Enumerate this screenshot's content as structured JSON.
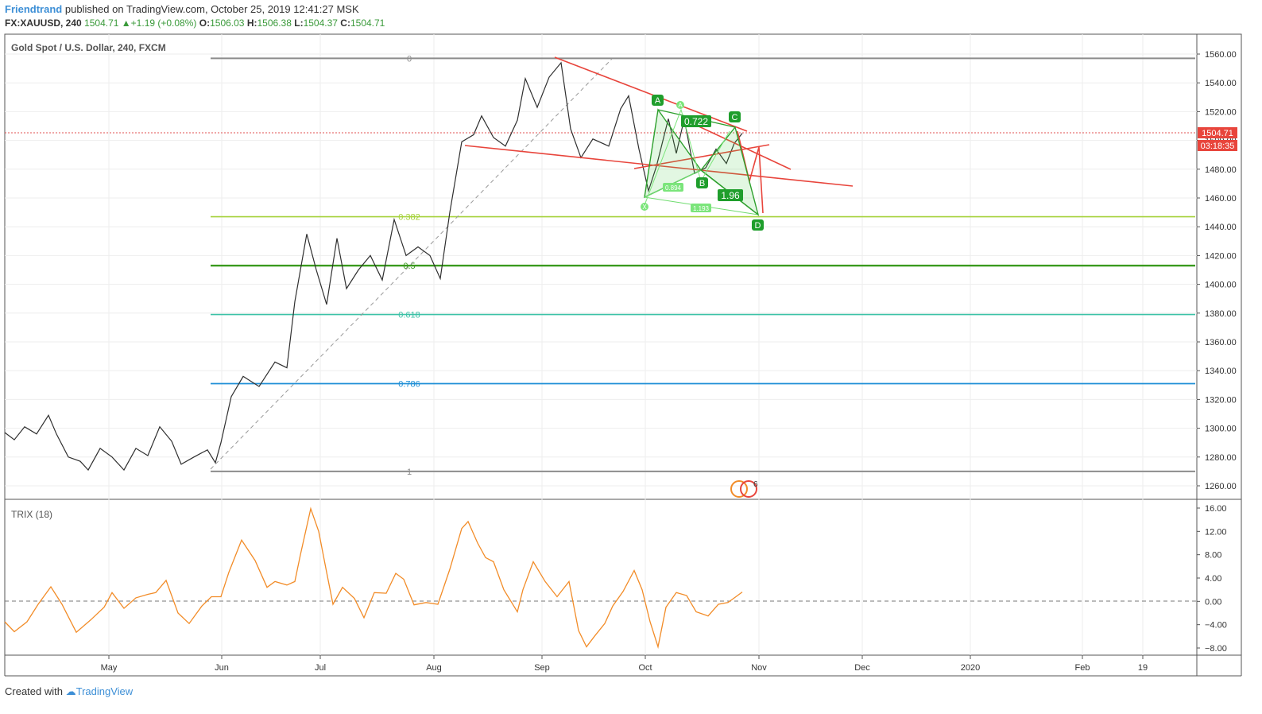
{
  "header": {
    "author": "Friendtrand",
    "published": "published on TradingView.com, October 25, 2019 12:41:27 MSK",
    "symbol": "FX:XAUUSD, 240",
    "last": "1504.71",
    "change": "+1.19 (+0.08%)",
    "o_label": "O:",
    "o": "1506.03",
    "h_label": "H:",
    "h": "1506.38",
    "l_label": "L:",
    "l": "1504.37",
    "c_label": "C:",
    "c": "1504.71"
  },
  "footer": {
    "created": "Created with",
    "brand": "TradingView"
  },
  "chart_data": [
    {
      "type": "line",
      "title": "Gold Spot / U.S. Dollar, 240, FXCM",
      "ylim": [
        1255,
        1566
      ],
      "y_ticks": [
        "1560.00",
        "1540.00",
        "1520.00",
        "1500.00",
        "1480.00",
        "1460.00",
        "1440.00",
        "1420.00",
        "1400.00",
        "1380.00",
        "1360.00",
        "1340.00",
        "1320.00",
        "1300.00",
        "1280.00",
        "1260.00"
      ],
      "x_ticks": [
        "May",
        "Jun",
        "Jul",
        "Aug",
        "Sep",
        "Oct",
        "Nov",
        "Dec",
        "2020",
        "Feb",
        "19"
      ],
      "last_price_label": "1504.71",
      "countdown_label": "03:18:35",
      "series": [
        {
          "values": [
            [
              0,
              1297
            ],
            [
              12,
              1292
            ],
            [
              25,
              1301
            ],
            [
              40,
              1296
            ],
            [
              55,
              1309
            ],
            [
              65,
              1296
            ],
            [
              80,
              1280
            ],
            [
              95,
              1277
            ],
            [
              105,
              1271
            ],
            [
              120,
              1286
            ],
            [
              135,
              1280
            ],
            [
              150,
              1271
            ],
            [
              165,
              1286
            ],
            [
              180,
              1281
            ],
            [
              195,
              1301
            ],
            [
              210,
              1291
            ],
            [
              222,
              1275
            ],
            [
              238,
              1280
            ],
            [
              255,
              1285
            ],
            [
              265,
              1276
            ],
            [
              272,
              1290
            ],
            [
              285,
              1322
            ],
            [
              300,
              1336
            ],
            [
              320,
              1329
            ],
            [
              340,
              1346
            ],
            [
              355,
              1342
            ],
            [
              365,
              1388
            ],
            [
              380,
              1435
            ],
            [
              392,
              1410
            ],
            [
              405,
              1386
            ],
            [
              418,
              1432
            ],
            [
              430,
              1397
            ],
            [
              445,
              1410
            ],
            [
              460,
              1420
            ],
            [
              475,
              1403
            ],
            [
              490,
              1445
            ],
            [
              505,
              1420
            ],
            [
              520,
              1426
            ],
            [
              535,
              1420
            ],
            [
              548,
              1404
            ],
            [
              560,
              1450
            ],
            [
              575,
              1499
            ],
            [
              590,
              1504
            ],
            [
              600,
              1517
            ],
            [
              615,
              1502
            ],
            [
              630,
              1496
            ],
            [
              645,
              1514
            ],
            [
              655,
              1543
            ],
            [
              670,
              1523
            ],
            [
              685,
              1544
            ],
            [
              700,
              1554
            ],
            [
              712,
              1508
            ],
            [
              725,
              1488
            ],
            [
              740,
              1501
            ],
            [
              760,
              1496
            ],
            [
              775,
              1522
            ],
            [
              785,
              1531
            ],
            [
              798,
              1494
            ],
            [
              810,
              1465
            ],
            [
              820,
              1482
            ],
            [
              835,
              1515
            ],
            [
              845,
              1491
            ],
            [
              855,
              1515
            ],
            [
              868,
              1477
            ],
            [
              882,
              1481
            ],
            [
              895,
              1494
            ],
            [
              908,
              1484
            ],
            [
              918,
              1498
            ],
            [
              928,
              1505
            ]
          ]
        }
      ],
      "fib_levels": [
        {
          "label": "0",
          "value": 1557
        },
        {
          "label": "0.382",
          "value": 1447
        },
        {
          "label": "0.5",
          "value": 1413
        },
        {
          "label": "0.618",
          "value": 1379
        },
        {
          "label": "0.786",
          "value": 1331
        },
        {
          "label": "1",
          "value": 1270
        }
      ],
      "pattern_labels": {
        "X": "X",
        "A": "A",
        "B": "B",
        "C": "C",
        "D": "D",
        "r1": "0.722",
        "r2": "1.96",
        "r3": "0.894",
        "r4": "1.193"
      },
      "event_label": "6"
    },
    {
      "type": "line",
      "title": "TRIX (18)",
      "ylim": [
        -9.5,
        17.5
      ],
      "y_ticks": [
        "16.00",
        "12.00",
        "8.00",
        "4.00",
        "0.00",
        "−4.00",
        "−8.00"
      ],
      "series": [
        {
          "values": [
            [
              0,
              -3.5
            ],
            [
              12,
              -5.2
            ],
            [
              28,
              -3.5
            ],
            [
              42,
              -0.5
            ],
            [
              58,
              2.5
            ],
            [
              72,
              -0.5
            ],
            [
              90,
              -5.3
            ],
            [
              108,
              -3.2
            ],
            [
              125,
              -1
            ],
            [
              135,
              1.5
            ],
            [
              150,
              -1.2
            ],
            [
              165,
              0.6
            ],
            [
              180,
              1.2
            ],
            [
              190,
              1.5
            ],
            [
              203,
              3.6
            ],
            [
              218,
              -2
            ],
            [
              232,
              -3.8
            ],
            [
              248,
              -0.8
            ],
            [
              260,
              0.8
            ],
            [
              272,
              0.8
            ],
            [
              282,
              5
            ],
            [
              298,
              10.5
            ],
            [
              315,
              7
            ],
            [
              330,
              2.4
            ],
            [
              340,
              3.4
            ],
            [
              355,
              2.8
            ],
            [
              365,
              3.4
            ],
            [
              372,
              8
            ],
            [
              385,
              15.9
            ],
            [
              395,
              12
            ],
            [
              405,
              5
            ],
            [
              413,
              -0.5
            ],
            [
              425,
              2.4
            ],
            [
              440,
              0.5
            ],
            [
              452,
              -2.8
            ],
            [
              465,
              1.5
            ],
            [
              480,
              1.4
            ],
            [
              492,
              4.8
            ],
            [
              502,
              3.8
            ],
            [
              515,
              -0.6
            ],
            [
              530,
              -0.2
            ],
            [
              545,
              -0.5
            ],
            [
              560,
              5.5
            ],
            [
              575,
              12.5
            ],
            [
              583,
              13.7
            ],
            [
              595,
              10
            ],
            [
              605,
              7.5
            ],
            [
              615,
              6.8
            ],
            [
              628,
              2
            ],
            [
              645,
              -1.8
            ],
            [
              652,
              2
            ],
            [
              665,
              6.8
            ],
            [
              680,
              3.4
            ],
            [
              695,
              0.8
            ],
            [
              710,
              3.4
            ],
            [
              722,
              -5
            ],
            [
              732,
              -7.8
            ],
            [
              742,
              -6
            ],
            [
              755,
              -3.8
            ],
            [
              765,
              -0.8
            ],
            [
              778,
              1.7
            ],
            [
              792,
              5.3
            ],
            [
              802,
              2
            ],
            [
              812,
              -3.5
            ],
            [
              822,
              -7.8
            ],
            [
              832,
              -1
            ],
            [
              845,
              1.5
            ],
            [
              858,
              1
            ],
            [
              870,
              -1.8
            ],
            [
              885,
              -2.5
            ],
            [
              898,
              -0.5
            ],
            [
              910,
              -0.2
            ],
            [
              920,
              0.8
            ],
            [
              928,
              1.6
            ]
          ]
        }
      ]
    }
  ]
}
